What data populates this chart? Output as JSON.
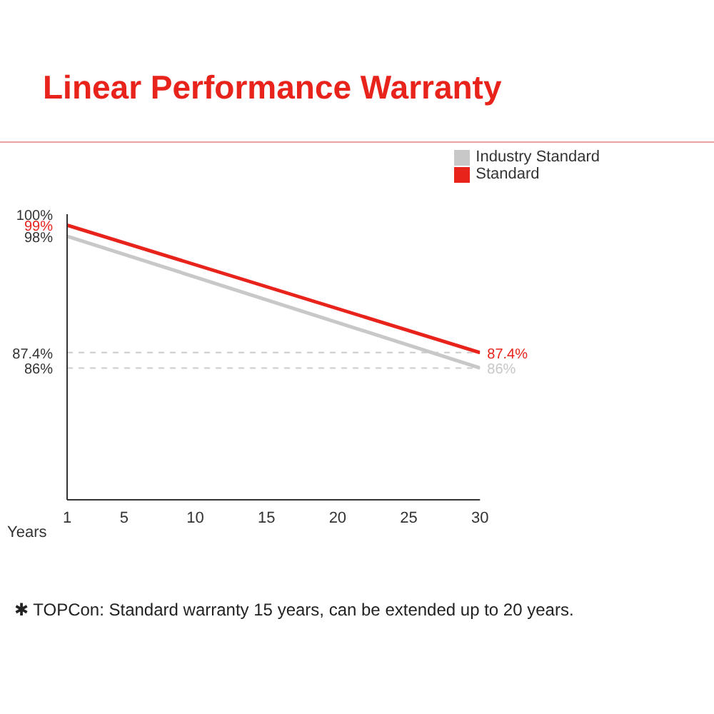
{
  "chart_data": {
    "type": "line",
    "title": "Linear Performance Warranty",
    "xlabel": "Years",
    "x": [
      1,
      30
    ],
    "series": [
      {
        "name": "Standard",
        "color": "#e8231c",
        "values": [
          99,
          87.4
        ],
        "value_labels": [
          null,
          "87.4%"
        ]
      },
      {
        "name": "Industry Standard",
        "color": "#c8c8c8",
        "values": [
          98,
          86
        ],
        "value_labels": [
          null,
          "86%"
        ]
      }
    ],
    "xlim": [
      1,
      30
    ],
    "xticks": [
      1,
      5,
      10,
      15,
      20,
      25,
      30
    ],
    "ylim": [
      74,
      100
    ],
    "yticks": [
      {
        "value": 100,
        "label": "100%"
      },
      {
        "value": 99,
        "label": "99%"
      },
      {
        "value": 98,
        "label": "98%"
      },
      {
        "value": 87.4,
        "label": "87.4%"
      },
      {
        "value": 86,
        "label": "86%"
      }
    ],
    "ref_lines": [
      {
        "axis": "y",
        "value": 87.4,
        "color": "#cccccc",
        "line_style": "dashed"
      },
      {
        "axis": "y",
        "value": 86,
        "color": "#cccccc",
        "line_style": "dashed"
      }
    ],
    "legend": "top right",
    "grid": false,
    "marker": "none",
    "line_style": "solid",
    "annotations": [
      "✱ TOPCon: Standard warranty 15 years, can be extended up to 20 years."
    ]
  }
}
